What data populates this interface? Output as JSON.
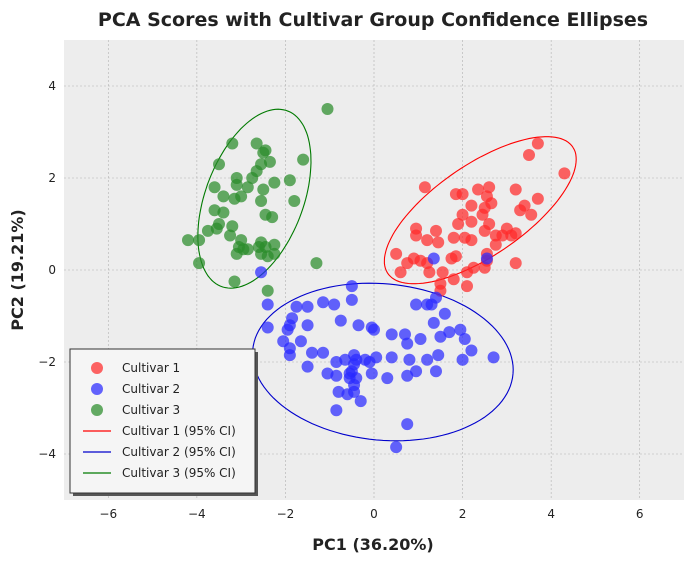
{
  "chart_data": {
    "type": "scatter",
    "title": "PCA Scores with Cultivar Group Confidence Ellipses",
    "xlabel": "PC1 (36.20%)",
    "ylabel": "PC2 (19.21%)",
    "xlim": [
      -7,
      7
    ],
    "ylim": [
      -5,
      5
    ],
    "xticks": [
      -6,
      -4,
      -2,
      0,
      2,
      4,
      6
    ],
    "yticks": [
      -4,
      -2,
      0,
      2,
      4
    ],
    "xtick_labels": [
      "−6",
      "−4",
      "−2",
      "0",
      "2",
      "4",
      "6"
    ],
    "ytick_labels": [
      "−4",
      "−2",
      "0",
      "2",
      "4"
    ],
    "grid": true,
    "legend_position": "lower-left",
    "series": [
      {
        "name": "Cultivar 1",
        "color": "#ff2a2a",
        "points": [
          [
            3.7,
            2.75
          ],
          [
            3.5,
            2.5
          ],
          [
            4.3,
            2.1
          ],
          [
            3.2,
            1.75
          ],
          [
            3.4,
            1.4
          ],
          [
            3.7,
            1.55
          ],
          [
            2.6,
            1.8
          ],
          [
            2.35,
            1.75
          ],
          [
            2.55,
            1.6
          ],
          [
            2.0,
            1.65
          ],
          [
            1.85,
            1.65
          ],
          [
            1.15,
            1.8
          ],
          [
            2.2,
            1.4
          ],
          [
            2.5,
            1.35
          ],
          [
            2.45,
            1.2
          ],
          [
            2.65,
            1.45
          ],
          [
            2.0,
            1.2
          ],
          [
            1.9,
            1.0
          ],
          [
            2.2,
            1.05
          ],
          [
            2.6,
            1.0
          ],
          [
            2.5,
            0.85
          ],
          [
            2.75,
            0.75
          ],
          [
            2.9,
            0.75
          ],
          [
            3.0,
            0.9
          ],
          [
            3.2,
            0.8
          ],
          [
            3.3,
            1.3
          ],
          [
            3.55,
            1.2
          ],
          [
            3.1,
            0.75
          ],
          [
            0.95,
            0.9
          ],
          [
            0.95,
            0.75
          ],
          [
            1.4,
            0.85
          ],
          [
            1.45,
            0.6
          ],
          [
            1.8,
            0.7
          ],
          [
            2.05,
            0.7
          ],
          [
            2.2,
            0.65
          ],
          [
            1.2,
            0.65
          ],
          [
            2.75,
            0.55
          ],
          [
            2.55,
            0.35
          ],
          [
            2.55,
            0.2
          ],
          [
            3.2,
            0.15
          ],
          [
            1.85,
            0.3
          ],
          [
            1.75,
            0.25
          ],
          [
            1.05,
            0.2
          ],
          [
            0.9,
            0.25
          ],
          [
            0.5,
            0.35
          ],
          [
            0.75,
            0.15
          ],
          [
            1.2,
            0.15
          ],
          [
            2.25,
            0.05
          ],
          [
            2.5,
            0.05
          ],
          [
            1.25,
            -0.05
          ],
          [
            1.55,
            -0.05
          ],
          [
            2.1,
            -0.05
          ],
          [
            1.8,
            -0.2
          ],
          [
            1.5,
            -0.3
          ],
          [
            1.5,
            -0.45
          ],
          [
            2.1,
            -0.35
          ],
          [
            0.6,
            -0.05
          ]
        ]
      },
      {
        "name": "Cultivar 2",
        "color": "#2a2aff",
        "points": [
          [
            -2.55,
            -0.05
          ],
          [
            -0.5,
            -0.35
          ],
          [
            -0.5,
            -0.65
          ],
          [
            -1.15,
            -0.7
          ],
          [
            -0.9,
            -0.75
          ],
          [
            -1.5,
            -0.8
          ],
          [
            -1.75,
            -0.8
          ],
          [
            -1.85,
            -1.05
          ],
          [
            -2.4,
            -1.25
          ],
          [
            -1.9,
            -1.2
          ],
          [
            -1.5,
            -1.2
          ],
          [
            -1.95,
            -1.3
          ],
          [
            -0.75,
            -1.1
          ],
          [
            -0.35,
            -1.2
          ],
          [
            -0.05,
            -1.25
          ],
          [
            0.0,
            -1.3
          ],
          [
            0.4,
            -1.4
          ],
          [
            0.7,
            -1.4
          ],
          [
            0.95,
            -0.75
          ],
          [
            1.3,
            -0.75
          ],
          [
            1.4,
            -0.6
          ],
          [
            1.6,
            -0.95
          ],
          [
            1.35,
            -1.15
          ],
          [
            1.7,
            -1.35
          ],
          [
            1.95,
            -1.3
          ],
          [
            1.5,
            -1.45
          ],
          [
            1.05,
            -1.5
          ],
          [
            0.75,
            -1.6
          ],
          [
            0.05,
            -1.9
          ],
          [
            -0.45,
            -1.85
          ],
          [
            -0.65,
            -1.95
          ],
          [
            -0.4,
            -1.95
          ],
          [
            -0.2,
            -1.95
          ],
          [
            -0.45,
            -2.05
          ],
          [
            -0.5,
            -2.2
          ],
          [
            -0.55,
            -2.35
          ],
          [
            -0.4,
            -2.35
          ],
          [
            -0.1,
            -2.0
          ],
          [
            -0.45,
            -2.5
          ],
          [
            -0.6,
            -2.7
          ],
          [
            -0.45,
            -2.65
          ],
          [
            -0.3,
            -2.85
          ],
          [
            -0.85,
            -2.3
          ],
          [
            -0.55,
            -2.25
          ],
          [
            -0.05,
            -2.25
          ],
          [
            0.3,
            -2.35
          ],
          [
            0.75,
            -2.3
          ],
          [
            0.95,
            -2.2
          ],
          [
            1.4,
            -2.2
          ],
          [
            1.45,
            -1.85
          ],
          [
            1.2,
            -1.95
          ],
          [
            0.8,
            -1.95
          ],
          [
            0.4,
            -1.9
          ],
          [
            -0.85,
            -2.0
          ],
          [
            -1.15,
            -1.8
          ],
          [
            -1.4,
            -1.8
          ],
          [
            -1.65,
            -1.55
          ],
          [
            -1.9,
            -1.7
          ],
          [
            -2.05,
            -1.55
          ],
          [
            -1.9,
            -1.85
          ],
          [
            -1.5,
            -2.1
          ],
          [
            -1.05,
            -2.25
          ],
          [
            -0.8,
            -2.65
          ],
          [
            -0.85,
            -3.05
          ],
          [
            0.75,
            -3.35
          ],
          [
            0.5,
            -3.85
          ],
          [
            2.05,
            -1.5
          ],
          [
            2.2,
            -1.75
          ],
          [
            2.7,
            -1.9
          ],
          [
            2.0,
            -1.95
          ],
          [
            2.55,
            0.25
          ],
          [
            1.35,
            0.25
          ],
          [
            1.2,
            -0.75
          ],
          [
            -2.4,
            -0.75
          ]
        ]
      },
      {
        "name": "Cultivar 3",
        "color": "#2a8c2a",
        "points": [
          [
            -1.05,
            3.5
          ],
          [
            -3.2,
            2.75
          ],
          [
            -2.65,
            2.75
          ],
          [
            -2.45,
            2.6
          ],
          [
            -2.5,
            2.55
          ],
          [
            -2.55,
            2.3
          ],
          [
            -2.65,
            2.15
          ],
          [
            -2.35,
            2.35
          ],
          [
            -2.75,
            2.0
          ],
          [
            -2.85,
            1.8
          ],
          [
            -3.1,
            2.0
          ],
          [
            -3.1,
            1.85
          ],
          [
            -3.0,
            1.6
          ],
          [
            -2.5,
            1.75
          ],
          [
            -2.25,
            1.9
          ],
          [
            -2.55,
            1.5
          ],
          [
            -3.5,
            2.3
          ],
          [
            -3.6,
            1.8
          ],
          [
            -3.4,
            1.6
          ],
          [
            -3.15,
            1.55
          ],
          [
            -1.9,
            1.95
          ],
          [
            -1.6,
            2.4
          ],
          [
            -1.8,
            1.5
          ],
          [
            -2.3,
            1.15
          ],
          [
            -2.45,
            1.2
          ],
          [
            -3.6,
            1.3
          ],
          [
            -3.4,
            1.25
          ],
          [
            -3.5,
            1.0
          ],
          [
            -3.2,
            0.95
          ],
          [
            -3.75,
            0.85
          ],
          [
            -3.55,
            0.9
          ],
          [
            -3.25,
            0.75
          ],
          [
            -3.0,
            0.65
          ],
          [
            -2.55,
            0.6
          ],
          [
            -2.45,
            0.5
          ],
          [
            -2.6,
            0.5
          ],
          [
            -2.25,
            0.55
          ],
          [
            -2.25,
            0.35
          ],
          [
            -2.4,
            0.3
          ],
          [
            -2.95,
            0.45
          ],
          [
            -3.1,
            0.35
          ],
          [
            -3.05,
            0.5
          ],
          [
            -2.85,
            0.45
          ],
          [
            -2.55,
            0.35
          ],
          [
            -3.95,
            0.65
          ],
          [
            -4.2,
            0.65
          ],
          [
            -3.95,
            0.15
          ],
          [
            -1.3,
            0.15
          ],
          [
            -3.15,
            -0.25
          ],
          [
            -2.4,
            -0.45
          ]
        ]
      }
    ],
    "ellipses": [
      {
        "name": "Cultivar 1 (95% CI)",
        "color": "#ff0000",
        "center": [
          2.4,
          1.3
        ],
        "semi_major": 2.5,
        "semi_minor": 1.0,
        "angle_deg": 33
      },
      {
        "name": "Cultivar 2 (95% CI)",
        "color": "#0000cc",
        "center": [
          0.2,
          -2.0
        ],
        "semi_major": 2.95,
        "semi_minor": 1.7,
        "angle_deg": -5
      },
      {
        "name": "Cultivar 3 (95% CI)",
        "color": "#007a00",
        "center": [
          -2.7,
          1.55
        ],
        "semi_major": 2.05,
        "semi_minor": 1.1,
        "angle_deg": 68
      }
    ]
  },
  "legend": {
    "entries": [
      {
        "label": "Cultivar 1",
        "kind": "marker",
        "color": "#ff2a2a"
      },
      {
        "label": "Cultivar 2",
        "kind": "marker",
        "color": "#2a2aff"
      },
      {
        "label": "Cultivar 3",
        "kind": "marker",
        "color": "#2a8c2a"
      },
      {
        "label": "Cultivar 1 (95% CI)",
        "kind": "line",
        "color": "#ff0000"
      },
      {
        "label": "Cultivar 2 (95% CI)",
        "kind": "line",
        "color": "#0000cc"
      },
      {
        "label": "Cultivar 3 (95% CI)",
        "kind": "line",
        "color": "#007a00"
      }
    ]
  },
  "colors": {
    "plot_background": "#ededed",
    "grid": "#b0b0b0"
  }
}
